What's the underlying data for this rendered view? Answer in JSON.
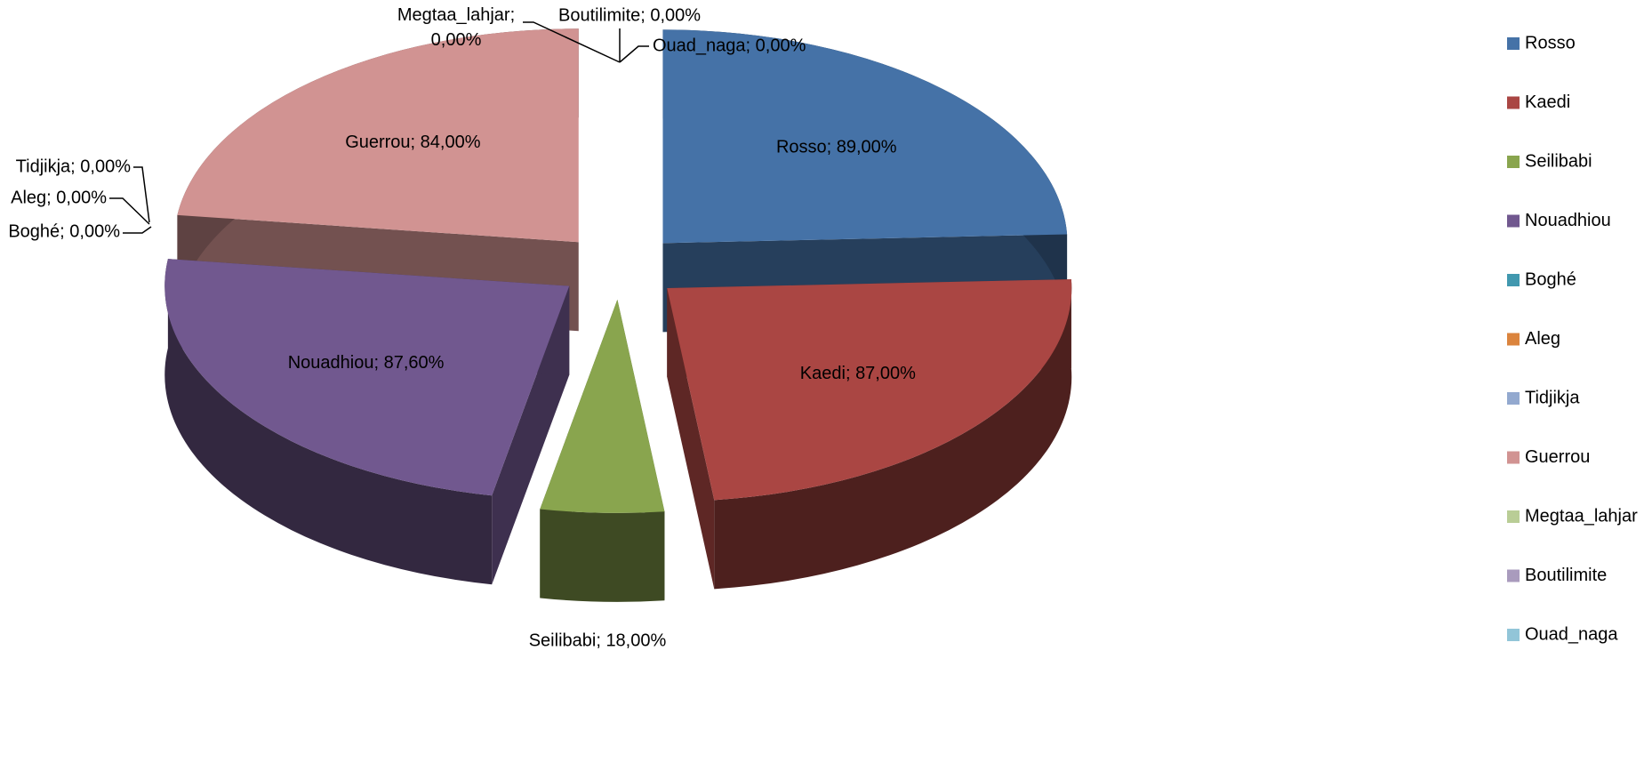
{
  "chart_data": {
    "type": "pie3d",
    "categories": [
      "Rosso",
      "Kaedi",
      "Seilibabi",
      "Nouadhiou",
      "Boghé",
      "Aleg",
      "Tidjikja",
      "Guerrou",
      "Megtaa_lahjar",
      "Boutilimite",
      "Ouad_naga"
    ],
    "values": [
      89,
      87,
      18,
      87.6,
      0,
      0,
      0,
      84,
      0,
      0,
      0
    ],
    "value_labels": [
      "Rosso; 89,00%",
      "Kaedi; 87,00%",
      "Seilibabi; 18,00%",
      "Nouadhiou; 87,60%",
      "Boghé; 0,00%",
      "Aleg; 0,00%",
      "Tidjikja; 0,00%",
      "Guerrou; 84,00%",
      "Megtaa_lahjar; 0,00%",
      "Boutilimite; 0,00%",
      "Ouad_naga; 0,00%"
    ],
    "colors": [
      "#4572a7",
      "#aa4643",
      "#89a54e",
      "#71588f",
      "#4198af",
      "#db843d",
      "#93a9cf",
      "#d19392",
      "#b9cd96",
      "#a99bbd",
      "#92c5d8"
    ],
    "legend": "right"
  }
}
